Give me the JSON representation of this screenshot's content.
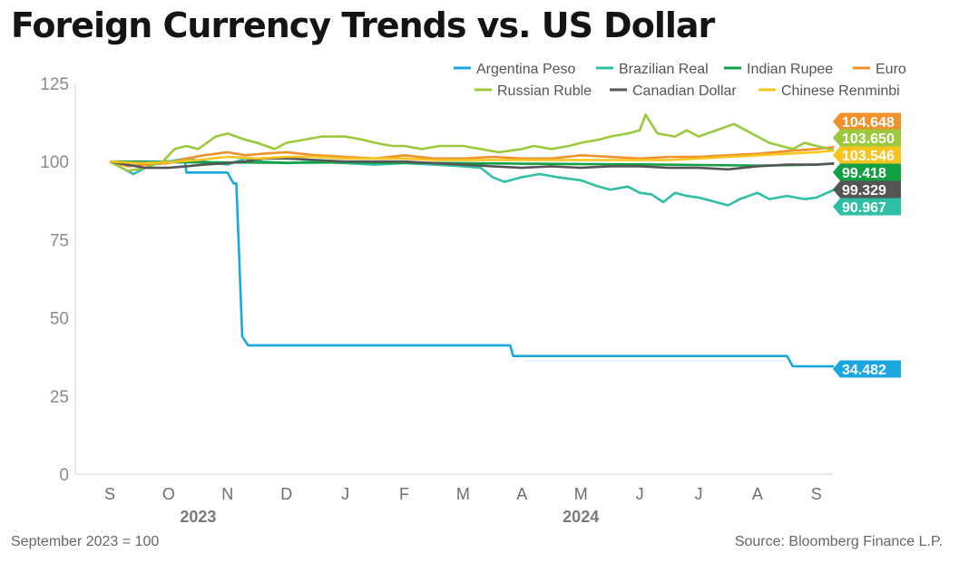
{
  "title": "Foreign Currency Trends vs. US Dollar",
  "footnote": "September 2023 = 100",
  "source": "Source: Bloomberg Finance L.P.",
  "chart_data": {
    "type": "line",
    "ylim": [
      0,
      125
    ],
    "yticks": [
      0,
      25,
      50,
      75,
      100,
      125
    ],
    "months": [
      "S",
      "O",
      "N",
      "D",
      "J",
      "F",
      "M",
      "A",
      "M",
      "J",
      "J",
      "A",
      "S"
    ],
    "years": [
      {
        "label": "2023",
        "month_index": 1.5
      },
      {
        "label": "2024",
        "month_index": 8
      }
    ],
    "legend_position": "top-right",
    "grid": false,
    "series": [
      {
        "name": "Argentina Peso",
        "color": "#1aa7e0",
        "end_label": "34.482",
        "points": [
          [
            0,
            100
          ],
          [
            1,
            100
          ],
          [
            1.28,
            100
          ],
          [
            1.3,
            96.5
          ],
          [
            1.5,
            96.5
          ],
          [
            2.0,
            96.5
          ],
          [
            2.1,
            93
          ],
          [
            2.15,
            93
          ],
          [
            2.25,
            44
          ],
          [
            2.35,
            41.2
          ],
          [
            3,
            41.2
          ],
          [
            4,
            41.2
          ],
          [
            5,
            41.2
          ],
          [
            6,
            41.2
          ],
          [
            6.8,
            41.2
          ],
          [
            6.85,
            37.8
          ],
          [
            7,
            37.8
          ],
          [
            8,
            37.8
          ],
          [
            9,
            37.8
          ],
          [
            10,
            37.8
          ],
          [
            11,
            37.8
          ],
          [
            11.5,
            37.8
          ],
          [
            11.6,
            34.5
          ],
          [
            12,
            34.48
          ],
          [
            12.3,
            34.482
          ]
        ]
      },
      {
        "name": "Brazilian Real",
        "color": "#2ebfa5",
        "end_label": "90.967",
        "points": [
          [
            0,
            100
          ],
          [
            0.2,
            98
          ],
          [
            0.4,
            96
          ],
          [
            0.6,
            98
          ],
          [
            0.8,
            99.5
          ],
          [
            1,
            100
          ],
          [
            1.3,
            101
          ],
          [
            1.6,
            100
          ],
          [
            2,
            99
          ],
          [
            2.3,
            101
          ],
          [
            2.6,
            100
          ],
          [
            3,
            99.5
          ],
          [
            3.5,
            100
          ],
          [
            4,
            99.5
          ],
          [
            4.5,
            99
          ],
          [
            5,
            99.5
          ],
          [
            5.5,
            99
          ],
          [
            6,
            98.5
          ],
          [
            6.3,
            98
          ],
          [
            6.5,
            95
          ],
          [
            6.7,
            93.5
          ],
          [
            7,
            95
          ],
          [
            7.3,
            96
          ],
          [
            7.6,
            95
          ],
          [
            8,
            94
          ],
          [
            8.3,
            92
          ],
          [
            8.5,
            91
          ],
          [
            8.8,
            92
          ],
          [
            9,
            90
          ],
          [
            9.2,
            89.5
          ],
          [
            9.4,
            87
          ],
          [
            9.6,
            90
          ],
          [
            9.8,
            89
          ],
          [
            10,
            88.5
          ],
          [
            10.3,
            87
          ],
          [
            10.5,
            86
          ],
          [
            10.7,
            88
          ],
          [
            11,
            90
          ],
          [
            11.2,
            88
          ],
          [
            11.5,
            89
          ],
          [
            11.8,
            88
          ],
          [
            12,
            88.5
          ],
          [
            12.3,
            90.967
          ]
        ]
      },
      {
        "name": "Indian Rupee",
        "color": "#13a045",
        "end_label": "99.418",
        "points": [
          [
            0,
            100
          ],
          [
            1,
            99.8
          ],
          [
            2,
            99.7
          ],
          [
            3,
            99.6
          ],
          [
            4,
            99.7
          ],
          [
            5,
            99.6
          ],
          [
            6,
            99.5
          ],
          [
            7,
            99.3
          ],
          [
            8,
            99.2
          ],
          [
            9,
            99.1
          ],
          [
            10,
            98.9
          ],
          [
            11,
            98.7
          ],
          [
            12,
            99
          ],
          [
            12.3,
            99.418
          ]
        ]
      },
      {
        "name": "Euro",
        "color": "#f0912c",
        "end_label": "104.648",
        "points": [
          [
            0,
            100
          ],
          [
            0.3,
            98.5
          ],
          [
            0.6,
            99
          ],
          [
            1,
            99.5
          ],
          [
            1.3,
            101
          ],
          [
            1.6,
            102
          ],
          [
            2,
            103
          ],
          [
            2.3,
            102
          ],
          [
            2.6,
            102.5
          ],
          [
            3,
            103
          ],
          [
            3.5,
            102
          ],
          [
            4,
            101.5
          ],
          [
            4.5,
            101
          ],
          [
            5,
            102
          ],
          [
            5.5,
            101
          ],
          [
            6,
            101
          ],
          [
            6.5,
            101.5
          ],
          [
            7,
            101
          ],
          [
            7.5,
            101
          ],
          [
            8,
            102
          ],
          [
            8.5,
            101.5
          ],
          [
            9,
            101
          ],
          [
            9.5,
            101.5
          ],
          [
            10,
            101.5
          ],
          [
            10.5,
            102
          ],
          [
            11,
            102.5
          ],
          [
            11.3,
            103
          ],
          [
            11.6,
            103.5
          ],
          [
            12,
            104
          ],
          [
            12.3,
            104.648
          ]
        ]
      },
      {
        "name": "Russian Ruble",
        "color": "#9cc83c",
        "end_label": "103.650",
        "points": [
          [
            0,
            100
          ],
          [
            0.3,
            97
          ],
          [
            0.6,
            98
          ],
          [
            0.9,
            100
          ],
          [
            1.1,
            104
          ],
          [
            1.3,
            105
          ],
          [
            1.5,
            104
          ],
          [
            1.8,
            108
          ],
          [
            2,
            109
          ],
          [
            2.3,
            107
          ],
          [
            2.5,
            106
          ],
          [
            2.8,
            104
          ],
          [
            3,
            106
          ],
          [
            3.3,
            107
          ],
          [
            3.6,
            108
          ],
          [
            4,
            108
          ],
          [
            4.3,
            107
          ],
          [
            4.5,
            106
          ],
          [
            4.8,
            105
          ],
          [
            5,
            105
          ],
          [
            5.3,
            104
          ],
          [
            5.6,
            105
          ],
          [
            6,
            105
          ],
          [
            6.3,
            104
          ],
          [
            6.6,
            103
          ],
          [
            7,
            104
          ],
          [
            7.2,
            105
          ],
          [
            7.5,
            104
          ],
          [
            7.8,
            105
          ],
          [
            8,
            106
          ],
          [
            8.3,
            107
          ],
          [
            8.5,
            108
          ],
          [
            8.8,
            109
          ],
          [
            9,
            110
          ],
          [
            9.1,
            115
          ],
          [
            9.3,
            109
          ],
          [
            9.6,
            108
          ],
          [
            9.8,
            110
          ],
          [
            10,
            108
          ],
          [
            10.3,
            110
          ],
          [
            10.6,
            112
          ],
          [
            10.8,
            110
          ],
          [
            11,
            108
          ],
          [
            11.2,
            106
          ],
          [
            11.4,
            105
          ],
          [
            11.6,
            104
          ],
          [
            11.8,
            106
          ],
          [
            12,
            105
          ],
          [
            12.3,
            103.65
          ]
        ]
      },
      {
        "name": "Canadian Dollar",
        "color": "#555555",
        "end_label": "99.329",
        "points": [
          [
            0,
            100
          ],
          [
            0.3,
            99
          ],
          [
            0.6,
            98
          ],
          [
            1,
            98
          ],
          [
            1.3,
            98.5
          ],
          [
            1.6,
            99
          ],
          [
            2,
            99.5
          ],
          [
            2.3,
            100
          ],
          [
            2.6,
            101
          ],
          [
            3,
            101
          ],
          [
            3.5,
            100.5
          ],
          [
            4,
            100
          ],
          [
            4.5,
            100
          ],
          [
            5,
            100
          ],
          [
            5.5,
            99.5
          ],
          [
            6,
            99
          ],
          [
            6.5,
            98.5
          ],
          [
            7,
            98
          ],
          [
            7.5,
            98.5
          ],
          [
            8,
            98
          ],
          [
            8.5,
            98.5
          ],
          [
            9,
            98.5
          ],
          [
            9.5,
            98
          ],
          [
            10,
            98
          ],
          [
            10.5,
            97.5
          ],
          [
            11,
            98.5
          ],
          [
            11.5,
            99
          ],
          [
            12,
            99
          ],
          [
            12.3,
            99.329
          ]
        ]
      },
      {
        "name": "Chinese Renminbi",
        "color": "#f7c51e",
        "end_label": "103.546",
        "points": [
          [
            0,
            100
          ],
          [
            0.5,
            99.5
          ],
          [
            1,
            99.8
          ],
          [
            1.5,
            100.5
          ],
          [
            2,
            101.5
          ],
          [
            2.5,
            101
          ],
          [
            3,
            101.5
          ],
          [
            3.5,
            101.5
          ],
          [
            4,
            101
          ],
          [
            4.5,
            101
          ],
          [
            5,
            101
          ],
          [
            5.5,
            100.5
          ],
          [
            6,
            100.5
          ],
          [
            6.5,
            100.5
          ],
          [
            7,
            100.5
          ],
          [
            7.5,
            100.5
          ],
          [
            8,
            100.5
          ],
          [
            8.5,
            100.5
          ],
          [
            9,
            100.5
          ],
          [
            9.5,
            100.5
          ],
          [
            10,
            101
          ],
          [
            10.5,
            101.5
          ],
          [
            11,
            102
          ],
          [
            11.5,
            102.5
          ],
          [
            12,
            103
          ],
          [
            12.3,
            103.546
          ]
        ]
      }
    ]
  }
}
